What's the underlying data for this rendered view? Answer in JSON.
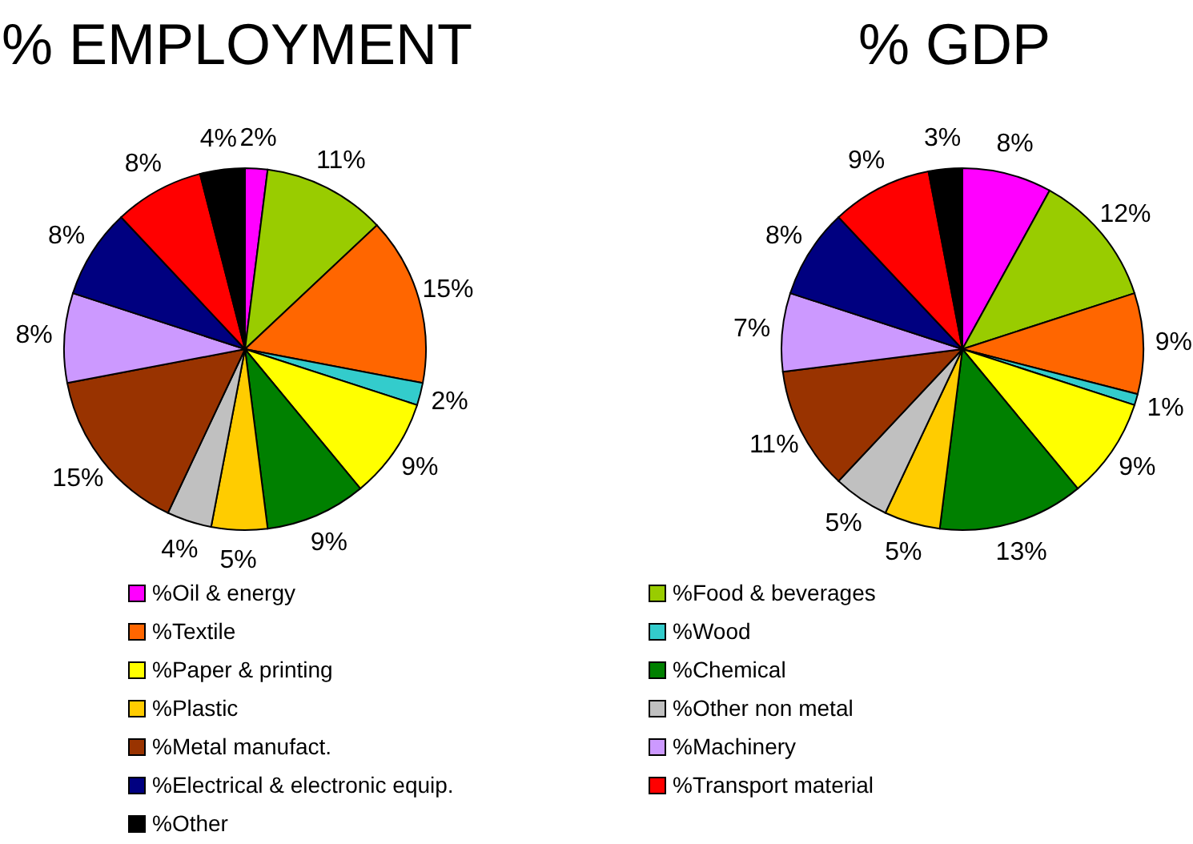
{
  "chart_data": [
    {
      "type": "pie",
      "title": "% EMPLOYMENT",
      "legend": "bottom",
      "categories": [
        "%Oil & energy",
        "%Food & beverages",
        "%Textile",
        "%Wood",
        "%Paper & printing",
        "%Chemical",
        "%Plastic",
        "%Other non metal",
        "%Metal manufact.",
        "%Machinery",
        "%Electrical & electronic equip.",
        "%Transport material",
        "%Other"
      ],
      "values": [
        2,
        11,
        15,
        2,
        9,
        9,
        5,
        4,
        15,
        8,
        8,
        8,
        4
      ],
      "value_labels": [
        "2%",
        "11%",
        "15%",
        "2%",
        "9%",
        "9%",
        "5%",
        "4%",
        "15%",
        "8%",
        "8%",
        "8%",
        "4%"
      ],
      "colors": [
        "#ff00ff",
        "#99cc00",
        "#ff6600",
        "#33cccc",
        "#ffff00",
        "#008000",
        "#ffcc00",
        "#c0c0c0",
        "#993300",
        "#cc99ff",
        "#000080",
        "#ff0000",
        "#000000"
      ]
    },
    {
      "type": "pie",
      "title": "% GDP",
      "values": [
        8,
        12,
        9,
        1,
        9,
        13,
        5,
        5,
        11,
        7,
        8,
        9,
        3
      ],
      "value_labels": [
        "8%",
        "12%",
        "9%",
        "1%",
        "9%",
        "13%",
        "5%",
        "5%",
        "11%",
        "7%",
        "8%",
        "9%",
        "3%"
      ],
      "colors": [
        "#ff00ff",
        "#99cc00",
        "#ff6600",
        "#33cccc",
        "#ffff00",
        "#008000",
        "#ffcc00",
        "#c0c0c0",
        "#993300",
        "#cc99ff",
        "#000080",
        "#ff0000",
        "#000000"
      ]
    }
  ]
}
